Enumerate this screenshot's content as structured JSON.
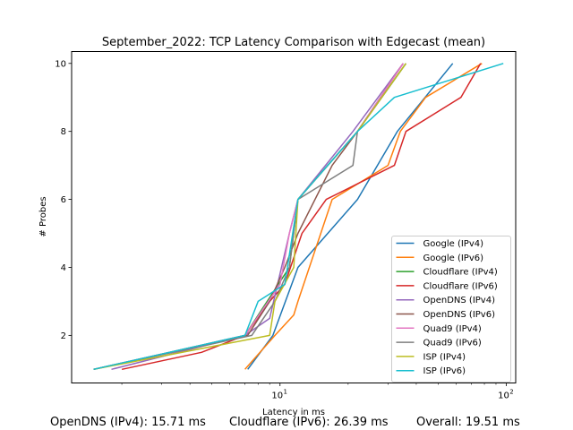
{
  "chart_data": {
    "type": "line",
    "title": "September_2022: TCP Latency Comparison with Edgecast (mean)",
    "xlabel": "Latency in ms",
    "ylabel": "# Probes",
    "xscale": "log",
    "xlim": [
      1.2,
      110
    ],
    "ylim": [
      0.6,
      10.35
    ],
    "yticks": [
      2,
      4,
      6,
      8,
      10
    ],
    "xticks": [
      {
        "value": 10,
        "base": "10",
        "exp": "1"
      },
      {
        "value": 100,
        "base": "10",
        "exp": "2"
      }
    ],
    "grid": false,
    "legend_position": "lower right",
    "series": [
      {
        "name": "Google (IPv4)",
        "color": "#1f77b4",
        "x": [
          7.2,
          9.3,
          12.0,
          22.0,
          33.0,
          58.0
        ],
        "y": [
          1,
          2,
          4,
          6,
          8,
          10
        ]
      },
      {
        "name": "Google (IPv6)",
        "color": "#ff7f0e",
        "x": [
          7.0,
          9.5,
          11.5,
          12.0,
          17.0,
          30.0,
          34.0,
          44.0,
          78.0
        ],
        "y": [
          1,
          2,
          2.6,
          3,
          6,
          7,
          8,
          9,
          10
        ]
      },
      {
        "name": "Cloudflare (IPv4)",
        "color": "#2ca02c",
        "x": [
          1.5,
          7.0,
          11.0,
          12.0,
          22.0,
          36.0
        ],
        "y": [
          1,
          2,
          4,
          6,
          8,
          10
        ]
      },
      {
        "name": "Cloudflare (IPv6)",
        "color": "#d62728",
        "x": [
          2.0,
          4.5,
          7.0,
          9.0,
          10.5,
          12.5,
          16.0,
          32.0,
          36.0,
          63.0,
          77.0
        ],
        "y": [
          1,
          1.5,
          2,
          3,
          3.5,
          5,
          6,
          7,
          8,
          9,
          10
        ]
      },
      {
        "name": "OpenDNS (IPv4)",
        "color": "#9467bd",
        "x": [
          1.8,
          7.0,
          9.0,
          11.0,
          12.0,
          21.0,
          35.0
        ],
        "y": [
          1,
          2,
          2.5,
          5,
          6,
          8,
          10
        ]
      },
      {
        "name": "OpenDNS (IPv6)",
        "color": "#8c564b",
        "x": [
          1.5,
          7.2,
          9.0,
          10.5,
          12.0,
          17.0,
          22.0,
          35.0
        ],
        "y": [
          1,
          2,
          3,
          4,
          5,
          7,
          8,
          10
        ]
      },
      {
        "name": "Quad9 (IPv4)",
        "color": "#e377c2",
        "x": [
          1.5,
          7.0,
          10.0,
          11.0,
          12.0,
          22.0,
          35.0
        ],
        "y": [
          1,
          2,
          3.5,
          5,
          6,
          8,
          10
        ]
      },
      {
        "name": "Quad9 (IPv6)",
        "color": "#7f7f7f",
        "x": [
          1.5,
          7.5,
          9.5,
          11.0,
          12.0,
          21.0,
          22.0,
          36.0
        ],
        "y": [
          1,
          2,
          3,
          4,
          6,
          7,
          8,
          10
        ]
      },
      {
        "name": "ISP (IPv4)",
        "color": "#bcbd22",
        "x": [
          1.5,
          9.0,
          9.5,
          11.5,
          12.0,
          22.0,
          36.0
        ],
        "y": [
          1,
          2,
          3,
          4,
          6,
          8,
          10
        ]
      },
      {
        "name": "ISP (IPv6)",
        "color": "#17becf",
        "x": [
          1.5,
          7.0,
          8.0,
          10.5,
          12.0,
          22.0,
          32.0,
          97.0
        ],
        "y": [
          1,
          2,
          3,
          3.5,
          6,
          8,
          9,
          10
        ]
      }
    ]
  },
  "footer": {
    "opendns": "OpenDNS (IPv4): 15.71 ms",
    "cloudflare": "Cloudflare (IPv6): 26.39 ms",
    "overall": "Overall: 19.51 ms"
  }
}
